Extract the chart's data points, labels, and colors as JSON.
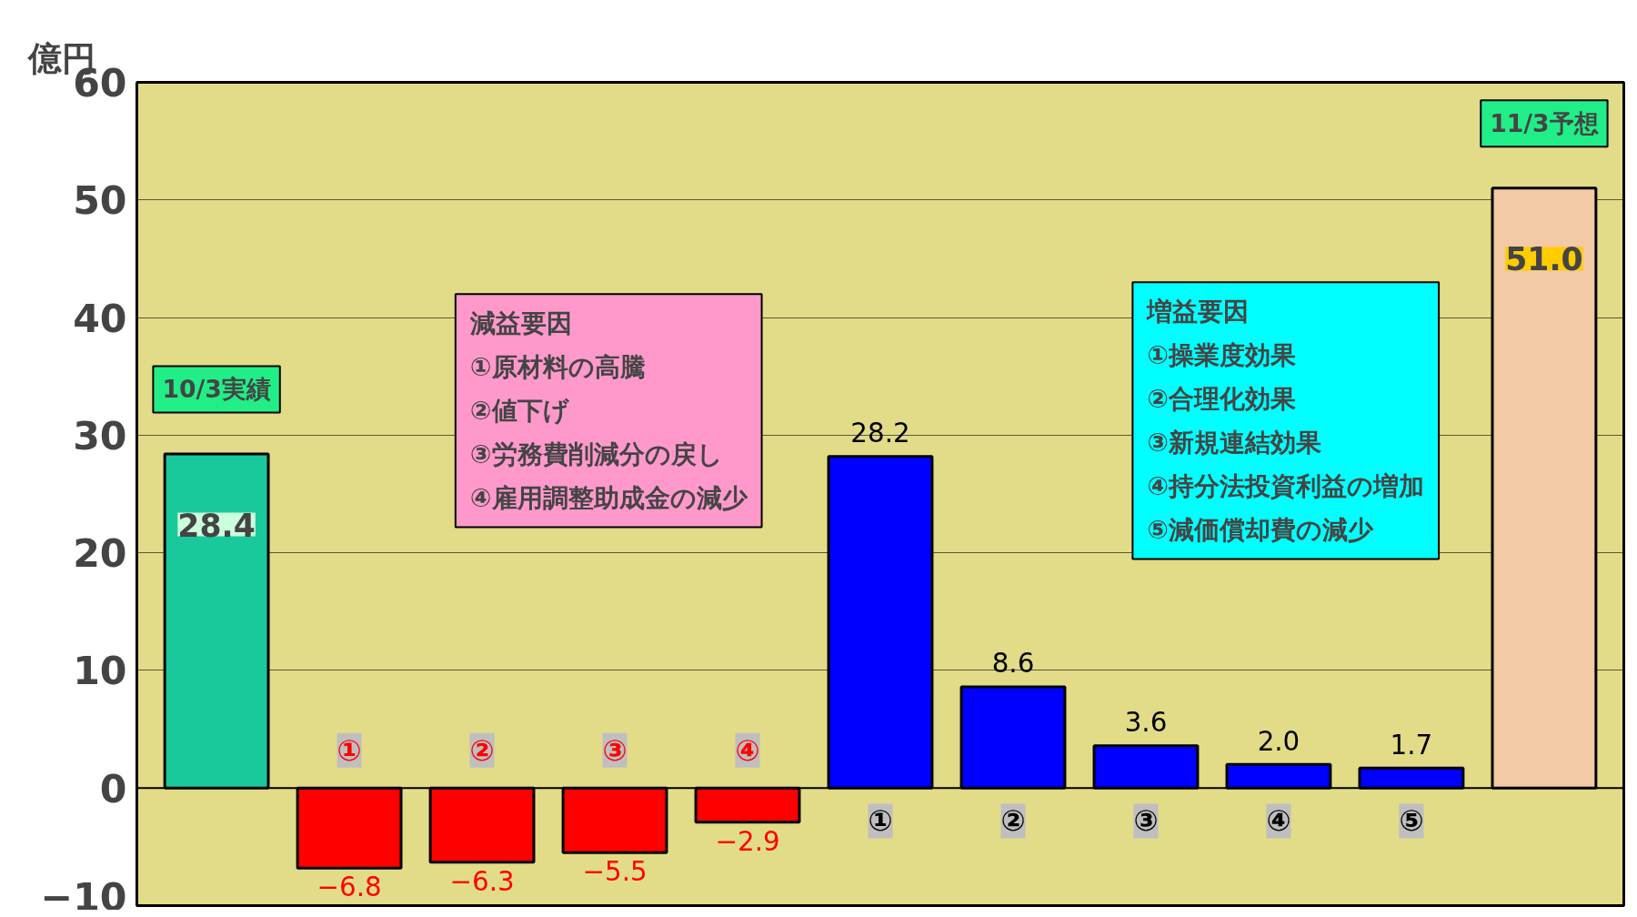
{
  "chart_data": {
    "type": "bar",
    "ylabel": "億円",
    "categories": [
      "10/3実績",
      "①",
      "②",
      "③",
      "④",
      "①",
      "②",
      "③",
      "④",
      "⑤",
      "11/3予想"
    ],
    "values": [
      28.4,
      -6.8,
      -6.3,
      -5.5,
      -2.9,
      28.2,
      8.6,
      3.6,
      2.0,
      1.7,
      51.0
    ],
    "value_labels": [
      "28.4",
      "−6.8",
      "−6.3",
      "−5.5",
      "−2.9",
      "28.2",
      "8.6",
      "3.6",
      "2.0",
      "1.7",
      "51.0"
    ],
    "colors": [
      "#19c99b",
      "#ff0000",
      "#ff0000",
      "#ff0000",
      "#ff0000",
      "#0000ff",
      "#0000ff",
      "#0000ff",
      "#0000ff",
      "#0000ff",
      "#f3c9a6"
    ],
    "ylim": [
      -10,
      60
    ],
    "yticks": [
      -10,
      0,
      10,
      20,
      30,
      40,
      50,
      60
    ],
    "grid": "y",
    "annotations": [
      "減益要因\n①原材料の高騰\n②値下げ\n③労務費削減分の戻し\n④雇用調整助成金の減少",
      "増益要因\n①操業度効果\n②合理化効果\n③新規連結効果\n④持分法投資利益の増加\n⑤減価償却費の減少"
    ]
  }
}
